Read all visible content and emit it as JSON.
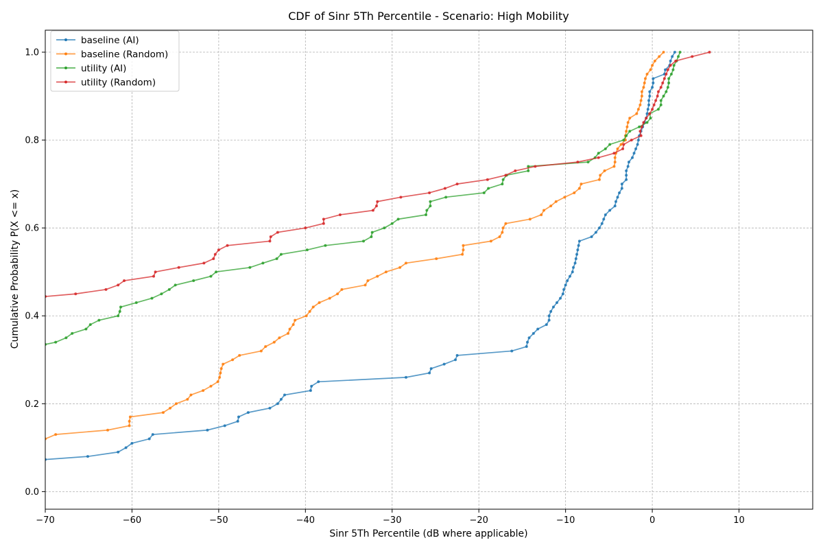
{
  "chart_data": {
    "type": "line",
    "title": "CDF of Sinr 5Th Percentile - Scenario: High Mobility",
    "xlabel": "Sinr 5Th Percentile (dB where applicable)",
    "ylabel": "Cumulative Probability P(X <= x)",
    "xlim": [
      -70,
      18.5
    ],
    "ylim": [
      -0.04,
      1.05
    ],
    "xticks": [
      -70,
      -60,
      -50,
      -40,
      -30,
      -20,
      -10,
      0,
      10
    ],
    "xtick_labels": [
      "−70",
      "−60",
      "−50",
      "−40",
      "−30",
      "−20",
      "−10",
      "0",
      "10"
    ],
    "yticks": [
      0.0,
      0.2,
      0.4,
      0.6,
      0.8,
      1.0
    ],
    "ytick_labels": [
      "0.0",
      "0.2",
      "0.4",
      "0.6",
      "0.8",
      "1.0"
    ],
    "grid": true,
    "legend_position": "top-left",
    "series": [
      {
        "name": "baseline (AI)",
        "color": "#1f77b4",
        "points": [
          [
            -70.0,
            0.073
          ],
          [
            -65.1,
            0.08
          ],
          [
            -61.6,
            0.09
          ],
          [
            -60.7,
            0.1
          ],
          [
            -60.0,
            0.11
          ],
          [
            -58.0,
            0.12
          ],
          [
            -57.6,
            0.13
          ],
          [
            -51.3,
            0.14
          ],
          [
            -49.3,
            0.15
          ],
          [
            -47.8,
            0.16
          ],
          [
            -47.7,
            0.17
          ],
          [
            -46.6,
            0.18
          ],
          [
            -44.1,
            0.19
          ],
          [
            -43.2,
            0.2
          ],
          [
            -42.8,
            0.21
          ],
          [
            -42.4,
            0.22
          ],
          [
            -39.4,
            0.23
          ],
          [
            -39.3,
            0.24
          ],
          [
            -38.5,
            0.25
          ],
          [
            -28.4,
            0.26
          ],
          [
            -25.7,
            0.27
          ],
          [
            -25.5,
            0.28
          ],
          [
            -24.0,
            0.29
          ],
          [
            -22.7,
            0.3
          ],
          [
            -22.5,
            0.31
          ],
          [
            -16.2,
            0.32
          ],
          [
            -14.5,
            0.33
          ],
          [
            -14.4,
            0.34
          ],
          [
            -14.2,
            0.35
          ],
          [
            -13.7,
            0.36
          ],
          [
            -13.2,
            0.37
          ],
          [
            -12.2,
            0.38
          ],
          [
            -11.9,
            0.39
          ],
          [
            -11.9,
            0.4
          ],
          [
            -11.7,
            0.41
          ],
          [
            -11.4,
            0.42
          ],
          [
            -11.0,
            0.43
          ],
          [
            -10.6,
            0.44
          ],
          [
            -10.3,
            0.45
          ],
          [
            -10.2,
            0.46
          ],
          [
            -10.0,
            0.47
          ],
          [
            -9.8,
            0.48
          ],
          [
            -9.5,
            0.49
          ],
          [
            -9.2,
            0.5
          ],
          [
            -9.1,
            0.51
          ],
          [
            -8.9,
            0.52
          ],
          [
            -8.8,
            0.53
          ],
          [
            -8.7,
            0.54
          ],
          [
            -8.6,
            0.55
          ],
          [
            -8.5,
            0.56
          ],
          [
            -8.4,
            0.57
          ],
          [
            -7.0,
            0.58
          ],
          [
            -6.5,
            0.59
          ],
          [
            -6.1,
            0.6
          ],
          [
            -5.8,
            0.61
          ],
          [
            -5.6,
            0.62
          ],
          [
            -5.4,
            0.63
          ],
          [
            -4.9,
            0.64
          ],
          [
            -4.3,
            0.65
          ],
          [
            -4.2,
            0.66
          ],
          [
            -4.0,
            0.67
          ],
          [
            -3.8,
            0.68
          ],
          [
            -3.5,
            0.69
          ],
          [
            -3.5,
            0.7
          ],
          [
            -3.0,
            0.71
          ],
          [
            -3.0,
            0.72
          ],
          [
            -3.0,
            0.73
          ],
          [
            -2.8,
            0.74
          ],
          [
            -2.7,
            0.75
          ],
          [
            -2.3,
            0.76
          ],
          [
            -2.1,
            0.77
          ],
          [
            -1.9,
            0.78
          ],
          [
            -1.7,
            0.79
          ],
          [
            -1.6,
            0.8
          ],
          [
            -1.5,
            0.81
          ],
          [
            -1.3,
            0.82
          ],
          [
            -1.1,
            0.83
          ],
          [
            -0.9,
            0.84
          ],
          [
            -0.7,
            0.85
          ],
          [
            -0.6,
            0.86
          ],
          [
            -0.5,
            0.87
          ],
          [
            -0.4,
            0.88
          ],
          [
            -0.4,
            0.89
          ],
          [
            -0.3,
            0.9
          ],
          [
            -0.3,
            0.91
          ],
          [
            0.0,
            0.92
          ],
          [
            0.1,
            0.93
          ],
          [
            0.1,
            0.94
          ],
          [
            1.4,
            0.95
          ],
          [
            1.5,
            0.96
          ],
          [
            2.0,
            0.97
          ],
          [
            2.1,
            0.98
          ],
          [
            2.3,
            0.99
          ],
          [
            2.6,
            1.0
          ]
        ]
      },
      {
        "name": "baseline (Random)",
        "color": "#ff7f0e",
        "points": [
          [
            -70.0,
            0.12
          ],
          [
            -68.8,
            0.13
          ],
          [
            -62.8,
            0.14
          ],
          [
            -60.3,
            0.15
          ],
          [
            -60.3,
            0.16
          ],
          [
            -60.2,
            0.17
          ],
          [
            -56.4,
            0.18
          ],
          [
            -55.6,
            0.19
          ],
          [
            -54.9,
            0.2
          ],
          [
            -53.6,
            0.21
          ],
          [
            -53.2,
            0.22
          ],
          [
            -51.8,
            0.23
          ],
          [
            -50.9,
            0.24
          ],
          [
            -50.1,
            0.25
          ],
          [
            -49.9,
            0.26
          ],
          [
            -49.8,
            0.27
          ],
          [
            -49.7,
            0.28
          ],
          [
            -49.5,
            0.29
          ],
          [
            -48.4,
            0.3
          ],
          [
            -47.6,
            0.31
          ],
          [
            -45.1,
            0.32
          ],
          [
            -44.6,
            0.33
          ],
          [
            -43.6,
            0.34
          ],
          [
            -43.0,
            0.35
          ],
          [
            -42.0,
            0.36
          ],
          [
            -41.8,
            0.37
          ],
          [
            -41.4,
            0.38
          ],
          [
            -41.2,
            0.39
          ],
          [
            -39.9,
            0.4
          ],
          [
            -39.5,
            0.41
          ],
          [
            -39.1,
            0.42
          ],
          [
            -38.4,
            0.43
          ],
          [
            -37.2,
            0.44
          ],
          [
            -36.3,
            0.45
          ],
          [
            -35.8,
            0.46
          ],
          [
            -33.1,
            0.47
          ],
          [
            -32.8,
            0.48
          ],
          [
            -31.7,
            0.49
          ],
          [
            -30.7,
            0.5
          ],
          [
            -29.1,
            0.51
          ],
          [
            -28.4,
            0.52
          ],
          [
            -24.9,
            0.53
          ],
          [
            -21.9,
            0.54
          ],
          [
            -21.8,
            0.55
          ],
          [
            -21.8,
            0.56
          ],
          [
            -18.6,
            0.57
          ],
          [
            -17.6,
            0.58
          ],
          [
            -17.3,
            0.59
          ],
          [
            -17.2,
            0.6
          ],
          [
            -16.9,
            0.61
          ],
          [
            -14.1,
            0.62
          ],
          [
            -12.8,
            0.63
          ],
          [
            -12.5,
            0.64
          ],
          [
            -11.7,
            0.65
          ],
          [
            -11.1,
            0.66
          ],
          [
            -10.1,
            0.67
          ],
          [
            -9.0,
            0.68
          ],
          [
            -8.4,
            0.69
          ],
          [
            -8.2,
            0.7
          ],
          [
            -6.1,
            0.71
          ],
          [
            -6.0,
            0.72
          ],
          [
            -5.5,
            0.73
          ],
          [
            -4.4,
            0.74
          ],
          [
            -4.3,
            0.75
          ],
          [
            -4.3,
            0.76
          ],
          [
            -4.2,
            0.77
          ],
          [
            -4.0,
            0.78
          ],
          [
            -3.6,
            0.79
          ],
          [
            -3.1,
            0.8
          ],
          [
            -3.1,
            0.81
          ],
          [
            -3.0,
            0.82
          ],
          [
            -2.9,
            0.83
          ],
          [
            -2.8,
            0.84
          ],
          [
            -2.6,
            0.85
          ],
          [
            -1.8,
            0.86
          ],
          [
            -1.6,
            0.87
          ],
          [
            -1.4,
            0.88
          ],
          [
            -1.3,
            0.89
          ],
          [
            -1.2,
            0.9
          ],
          [
            -1.2,
            0.91
          ],
          [
            -1.0,
            0.92
          ],
          [
            -0.9,
            0.93
          ],
          [
            -0.8,
            0.94
          ],
          [
            -0.6,
            0.95
          ],
          [
            -0.2,
            0.96
          ],
          [
            0.0,
            0.97
          ],
          [
            0.3,
            0.98
          ],
          [
            0.8,
            0.99
          ],
          [
            1.3,
            1.0
          ]
        ]
      },
      {
        "name": "utility (AI)",
        "color": "#2ca02c",
        "points": [
          [
            -70.0,
            0.335
          ],
          [
            -68.8,
            0.34
          ],
          [
            -67.6,
            0.35
          ],
          [
            -66.9,
            0.36
          ],
          [
            -65.3,
            0.37
          ],
          [
            -64.8,
            0.38
          ],
          [
            -63.8,
            0.39
          ],
          [
            -61.6,
            0.4
          ],
          [
            -61.4,
            0.41
          ],
          [
            -61.3,
            0.42
          ],
          [
            -59.5,
            0.43
          ],
          [
            -57.7,
            0.44
          ],
          [
            -56.6,
            0.45
          ],
          [
            -55.7,
            0.46
          ],
          [
            -55.0,
            0.47
          ],
          [
            -52.9,
            0.48
          ],
          [
            -50.9,
            0.49
          ],
          [
            -50.3,
            0.5
          ],
          [
            -46.4,
            0.51
          ],
          [
            -44.9,
            0.52
          ],
          [
            -43.3,
            0.53
          ],
          [
            -42.8,
            0.54
          ],
          [
            -39.8,
            0.55
          ],
          [
            -37.7,
            0.56
          ],
          [
            -33.3,
            0.57
          ],
          [
            -32.4,
            0.58
          ],
          [
            -32.3,
            0.59
          ],
          [
            -30.9,
            0.6
          ],
          [
            -30.0,
            0.61
          ],
          [
            -29.3,
            0.62
          ],
          [
            -26.1,
            0.63
          ],
          [
            -26.0,
            0.64
          ],
          [
            -25.6,
            0.65
          ],
          [
            -25.6,
            0.66
          ],
          [
            -23.8,
            0.67
          ],
          [
            -19.4,
            0.68
          ],
          [
            -18.9,
            0.69
          ],
          [
            -17.3,
            0.7
          ],
          [
            -17.2,
            0.71
          ],
          [
            -16.8,
            0.72
          ],
          [
            -14.3,
            0.73
          ],
          [
            -14.3,
            0.74
          ],
          [
            -7.4,
            0.75
          ],
          [
            -6.6,
            0.76
          ],
          [
            -6.2,
            0.77
          ],
          [
            -5.4,
            0.78
          ],
          [
            -4.9,
            0.79
          ],
          [
            -3.3,
            0.8
          ],
          [
            -3.0,
            0.81
          ],
          [
            -2.6,
            0.82
          ],
          [
            -1.5,
            0.83
          ],
          [
            -0.6,
            0.84
          ],
          [
            -0.2,
            0.85
          ],
          [
            -0.3,
            0.86
          ],
          [
            0.7,
            0.87
          ],
          [
            1.0,
            0.88
          ],
          [
            1.0,
            0.89
          ],
          [
            1.3,
            0.9
          ],
          [
            1.6,
            0.91
          ],
          [
            1.8,
            0.92
          ],
          [
            1.9,
            0.93
          ],
          [
            1.9,
            0.94
          ],
          [
            2.2,
            0.95
          ],
          [
            2.4,
            0.96
          ],
          [
            2.5,
            0.97
          ],
          [
            2.8,
            0.98
          ],
          [
            3.0,
            0.99
          ],
          [
            3.2,
            1.0
          ]
        ]
      },
      {
        "name": "utility (Random)",
        "color": "#d62728",
        "points": [
          [
            -70.0,
            0.444
          ],
          [
            -66.5,
            0.45
          ],
          [
            -63.0,
            0.46
          ],
          [
            -61.6,
            0.47
          ],
          [
            -60.9,
            0.48
          ],
          [
            -57.5,
            0.49
          ],
          [
            -57.3,
            0.5
          ],
          [
            -54.6,
            0.51
          ],
          [
            -51.7,
            0.52
          ],
          [
            -50.6,
            0.53
          ],
          [
            -50.4,
            0.54
          ],
          [
            -50.0,
            0.55
          ],
          [
            -49.0,
            0.56
          ],
          [
            -44.1,
            0.57
          ],
          [
            -44.0,
            0.58
          ],
          [
            -43.2,
            0.59
          ],
          [
            -40.0,
            0.6
          ],
          [
            -37.9,
            0.61
          ],
          [
            -37.9,
            0.62
          ],
          [
            -36.0,
            0.63
          ],
          [
            -32.2,
            0.64
          ],
          [
            -31.8,
            0.65
          ],
          [
            -31.7,
            0.66
          ],
          [
            -29.0,
            0.67
          ],
          [
            -25.7,
            0.68
          ],
          [
            -23.9,
            0.69
          ],
          [
            -22.5,
            0.7
          ],
          [
            -19.0,
            0.71
          ],
          [
            -16.9,
            0.72
          ],
          [
            -15.8,
            0.73
          ],
          [
            -13.5,
            0.74
          ],
          [
            -8.6,
            0.75
          ],
          [
            -6.2,
            0.76
          ],
          [
            -4.4,
            0.77
          ],
          [
            -3.4,
            0.78
          ],
          [
            -3.3,
            0.79
          ],
          [
            -2.4,
            0.8
          ],
          [
            -1.3,
            0.81
          ],
          [
            -1.4,
            0.82
          ],
          [
            -1.2,
            0.83
          ],
          [
            -1.0,
            0.84
          ],
          [
            -0.7,
            0.85
          ],
          [
            -0.3,
            0.86
          ],
          [
            0.0,
            0.87
          ],
          [
            0.2,
            0.88
          ],
          [
            0.4,
            0.89
          ],
          [
            0.6,
            0.9
          ],
          [
            0.7,
            0.91
          ],
          [
            1.0,
            0.92
          ],
          [
            1.2,
            0.93
          ],
          [
            1.4,
            0.94
          ],
          [
            1.6,
            0.95
          ],
          [
            1.8,
            0.96
          ],
          [
            2.1,
            0.97
          ],
          [
            2.7,
            0.98
          ],
          [
            4.6,
            0.99
          ],
          [
            6.6,
            1.0
          ]
        ]
      }
    ]
  }
}
